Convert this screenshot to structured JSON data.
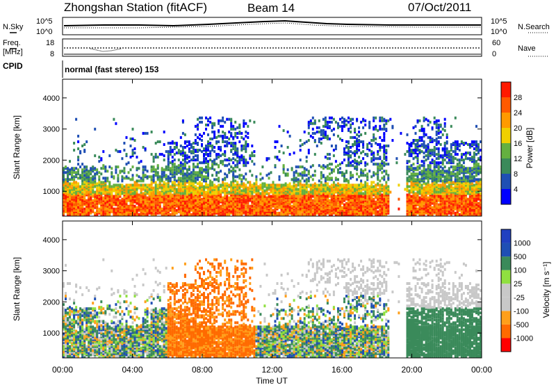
{
  "header": {
    "station": "Zhongshan Station (fitACF)",
    "beam": "Beam 14",
    "date": "07/Oct/2011"
  },
  "top_panels": {
    "nsky_label": "N.Sky",
    "nsky_ticks": [
      "10^5",
      "10^0"
    ],
    "nsearch_label": "N.Search",
    "nsearch_ticks": [
      "10^5",
      "10^0"
    ],
    "freq_label": "Freq.",
    "freq_unit": "[MHz]",
    "freq_ticks": [
      "18",
      "8"
    ],
    "nave_label": "Nave",
    "nave_ticks": [
      "60",
      "0"
    ],
    "cpid_label": "CPID",
    "cpid_text": "normal (fast stereo) 153"
  },
  "colors": {
    "power_bar": [
      "#0000ff",
      "#1f4fb4",
      "#3a8a5a",
      "#64b040",
      "#f0d000",
      "#ff9a00",
      "#ff5a00",
      "#ff1a00"
    ],
    "velocity_bar": [
      "#ff0000",
      "#ff6a00",
      "#ff9f1a",
      "#c8c8c8",
      "#c8c8c8",
      "#90e040",
      "#3a8a5a",
      "#1f4fb4",
      "#2040c0"
    ]
  },
  "chart_data": [
    {
      "type": "heatmap",
      "title": "Power",
      "ylabel": "Slant Range [km]",
      "xlabel": "Time UT",
      "x_ticks": [
        "00:00",
        "04:00",
        "08:00",
        "12:00",
        "16:00",
        "20:00",
        "00:00"
      ],
      "y_ticks": [
        "1000",
        "2000",
        "3000",
        "4000"
      ],
      "ylim": [
        200,
        4600
      ],
      "xlim_hours": [
        0,
        24
      ],
      "colorbar_label": "Power [dB]",
      "colorbar_ticks": [
        "28",
        "24",
        "20",
        "16",
        "12",
        "8",
        "4"
      ],
      "colorbar_range": [
        0,
        32
      ]
    },
    {
      "type": "heatmap",
      "title": "Velocity",
      "ylabel": "Slant Range [km]",
      "xlabel": "Time UT",
      "x_ticks": [
        "00:00",
        "04:00",
        "08:00",
        "12:00",
        "16:00",
        "20:00",
        "00:00"
      ],
      "y_ticks": [
        "1000",
        "2000",
        "3000",
        "4000"
      ],
      "ylim": [
        200,
        4600
      ],
      "xlim_hours": [
        0,
        24
      ],
      "colorbar_label": "Velocity [m s⁻¹]",
      "colorbar_ticks": [
        "1000",
        "500",
        "100",
        "25",
        "-25",
        "-100",
        "-500",
        "-1000"
      ]
    }
  ]
}
